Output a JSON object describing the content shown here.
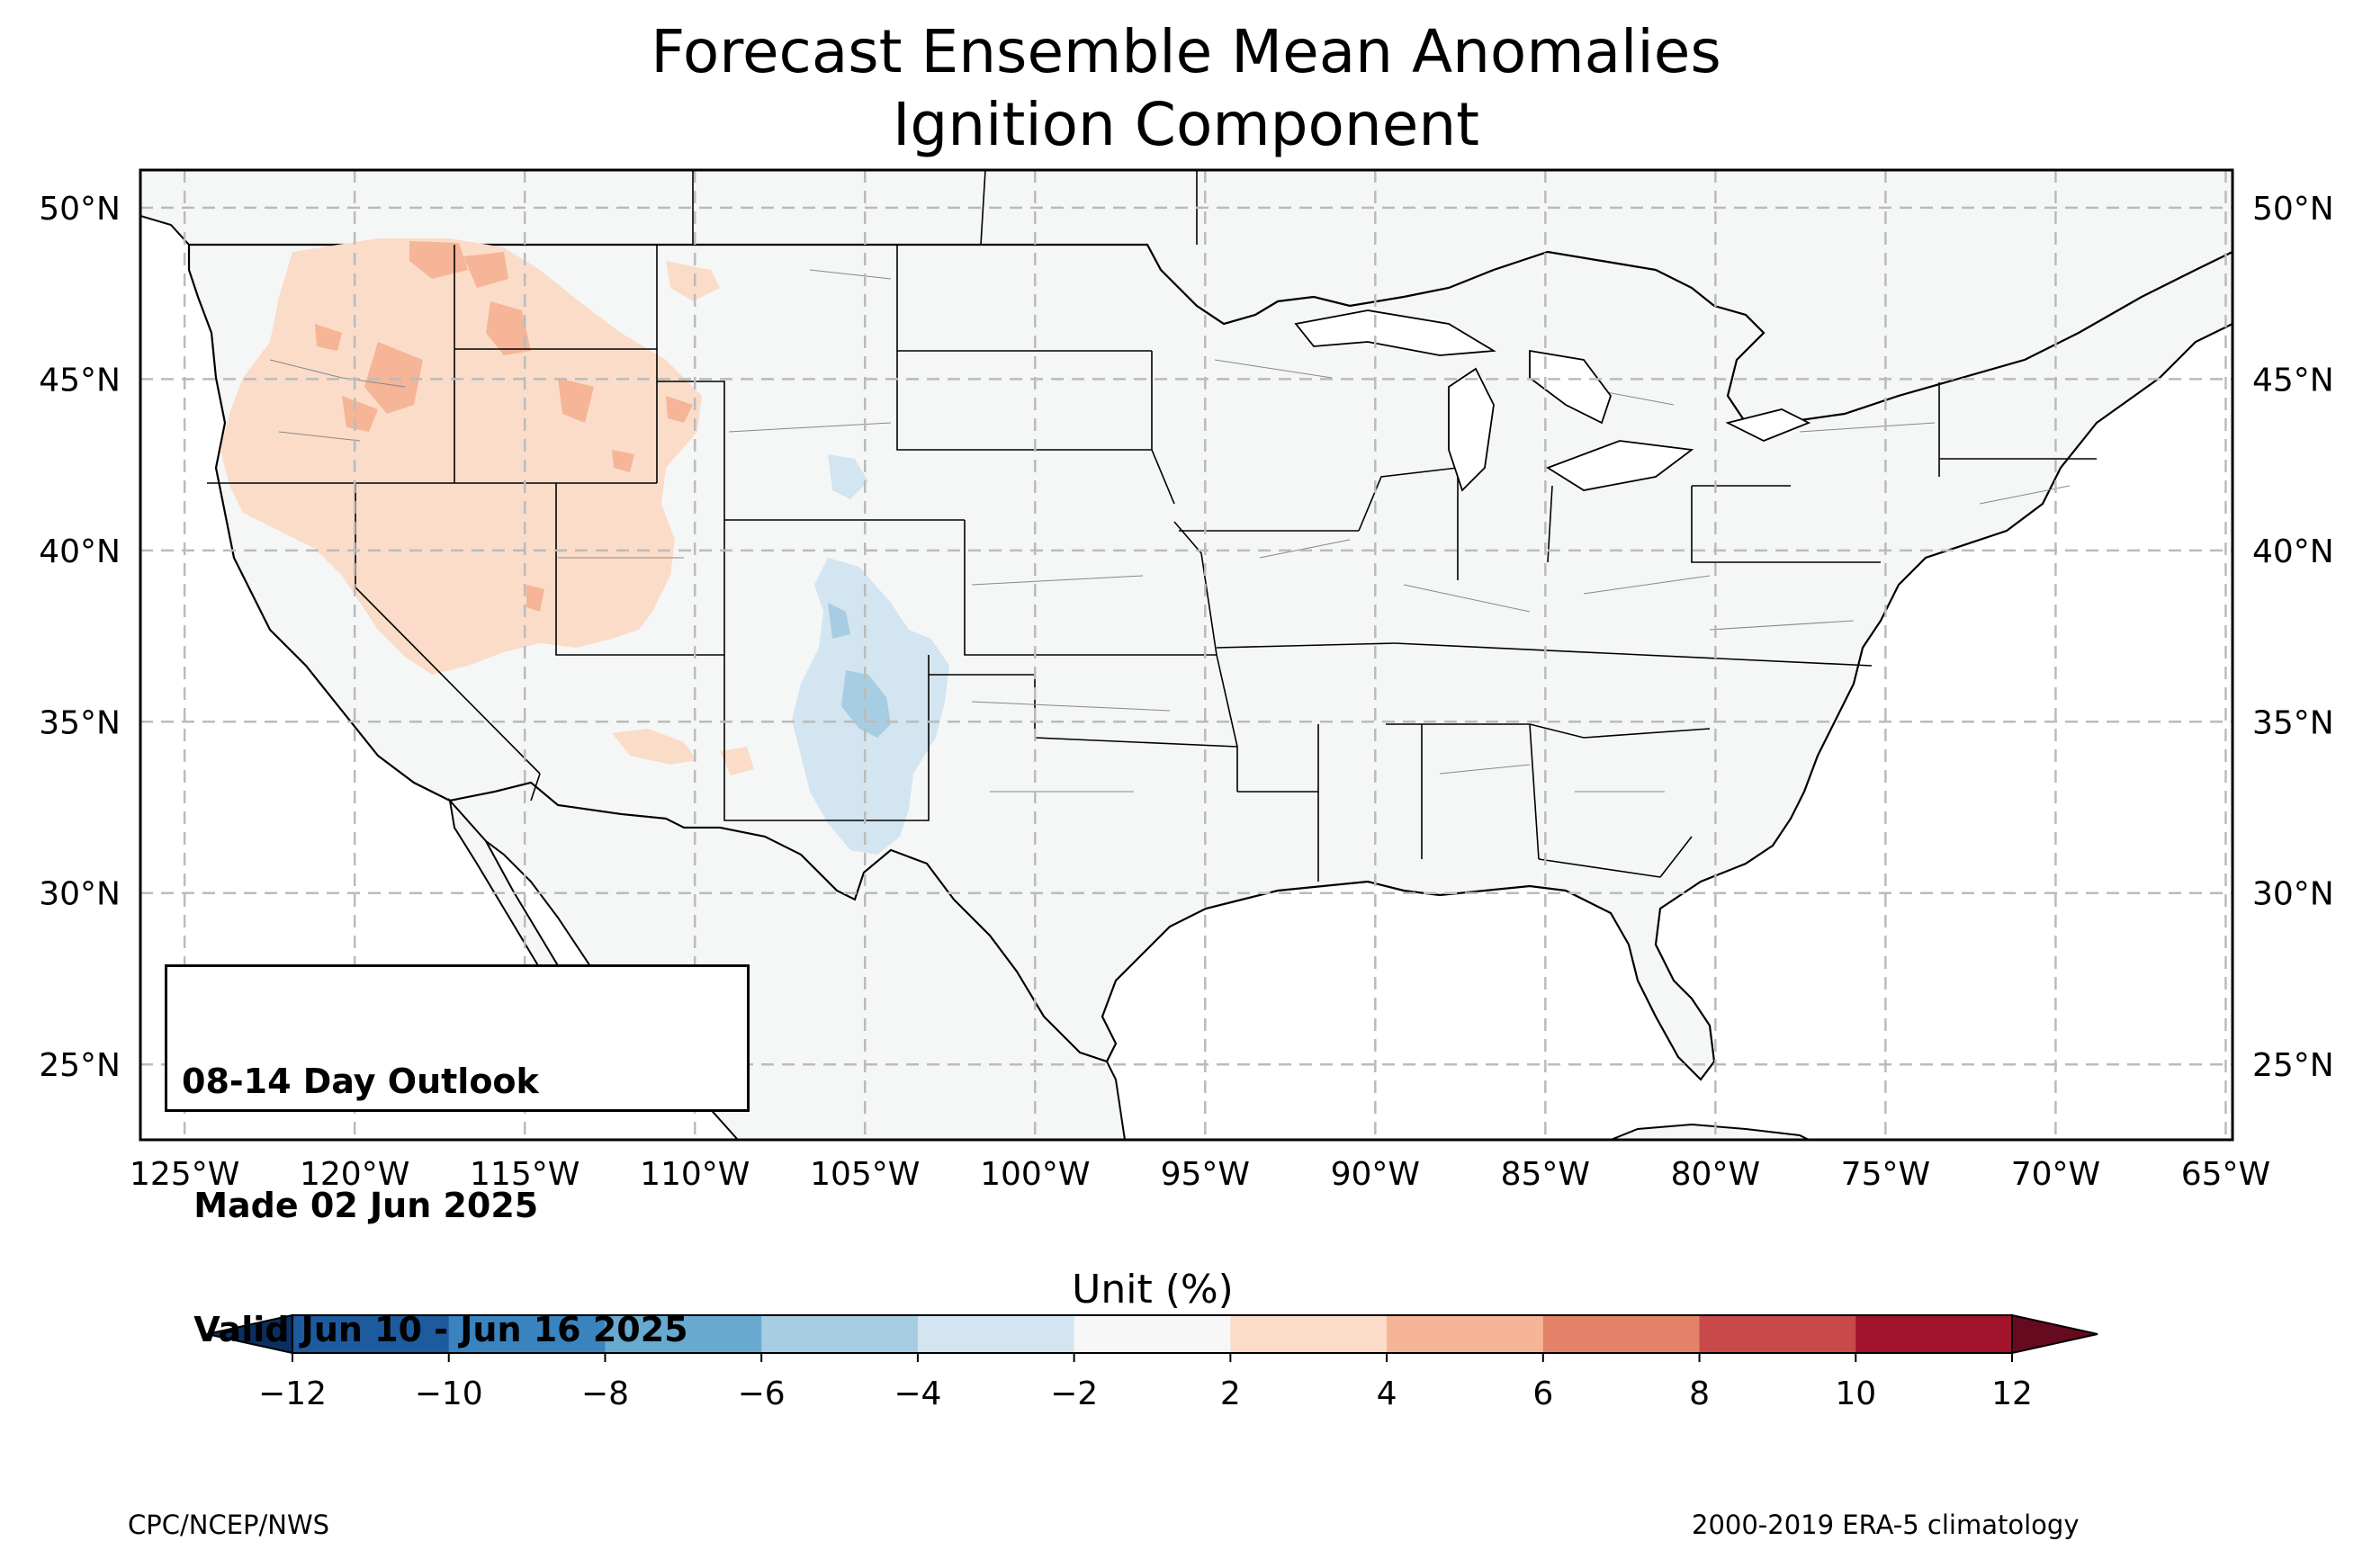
{
  "title": {
    "line1": "Forecast Ensemble Mean Anomalies",
    "line2": "Ignition Component"
  },
  "map": {
    "lon_ticks": [
      "125°W",
      "120°W",
      "115°W",
      "110°W",
      "105°W",
      "100°W",
      "95°W",
      "90°W",
      "85°W",
      "80°W",
      "75°W",
      "70°W",
      "65°W"
    ],
    "lat_ticks": [
      "50°N",
      "45°N",
      "40°N",
      "35°N",
      "30°N",
      "25°N"
    ],
    "extent": {
      "lon_min": -126.3,
      "lon_max": -64.8,
      "lat_min": 22.8,
      "lat_max": 51.1
    },
    "gridlines": true,
    "land_color": "#f5f7f7",
    "ocean_color": "#ffffff"
  },
  "outlook": {
    "line1": "08-14 Day Outlook",
    "line2": " Made 02 Jun 2025",
    "line3": " Valid Jun 10 - Jun 16 2025"
  },
  "colorbar": {
    "title": "Unit (%)",
    "ticks": [
      "−12",
      "−10",
      "−8",
      "−6",
      "−4",
      "−2",
      "2",
      "4",
      "6",
      "8",
      "10",
      "12"
    ],
    "bins": [
      {
        "from": -12,
        "to": -10,
        "color": "#1d5a9e"
      },
      {
        "from": -10,
        "to": -8,
        "color": "#3983bf"
      },
      {
        "from": -8,
        "to": -6,
        "color": "#68a9d0"
      },
      {
        "from": -6,
        "to": -4,
        "color": "#a7cde3"
      },
      {
        "from": -4,
        "to": -2,
        "color": "#d3e5f0"
      },
      {
        "from": -2,
        "to": 2,
        "color": "#f7f7f7"
      },
      {
        "from": 2,
        "to": 4,
        "color": "#fbdcc9"
      },
      {
        "from": 4,
        "to": 6,
        "color": "#f5b596"
      },
      {
        "from": 6,
        "to": 8,
        "color": "#e48269"
      },
      {
        "from": 8,
        "to": 10,
        "color": "#c9484a"
      },
      {
        "from": 10,
        "to": 12,
        "color": "#a2132c"
      }
    ],
    "under_color": "#0b2f60",
    "over_color": "#670a1f"
  },
  "footer": {
    "left": "CPC/NCEP/NWS",
    "right": "2000-2019 ERA-5 climatology"
  }
}
